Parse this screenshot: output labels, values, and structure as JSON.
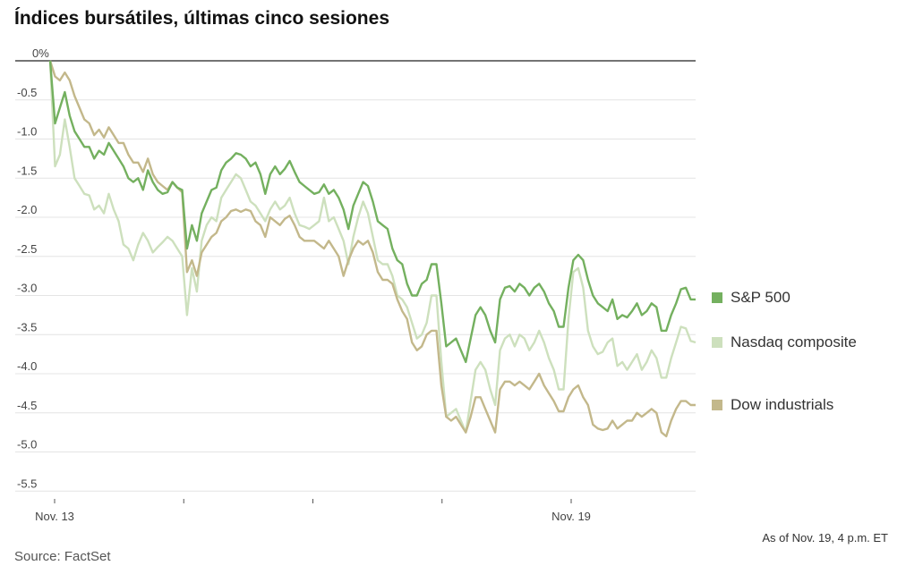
{
  "title": "Índices bursátiles, últimas cinco sesiones",
  "note": "As of Nov. 19, 4 p.m. ET",
  "source": "Source: FactSet",
  "colors": {
    "sp500": "#74b05f",
    "nasdaq": "#cde0bd",
    "dow": "#c3b88b",
    "grid": "#e4e4e4",
    "zero_line": "#222222"
  },
  "chart_data": {
    "type": "line",
    "title": "Índices bursátiles, últimas cinco sesiones",
    "xlabel": "",
    "ylabel": "",
    "ylim": [
      -5.6,
      0
    ],
    "y_ticks": [
      0,
      -0.5,
      -1.0,
      -1.5,
      -2.0,
      -2.5,
      -3.0,
      -3.5,
      -4.0,
      -4.5,
      -5.0,
      -5.5
    ],
    "y_tick_labels": [
      "0%",
      "-0.5",
      "-1.0",
      "-1.5",
      "-2.0",
      "-2.5",
      "-3.0",
      "-3.5",
      "-4.0",
      "-4.5",
      "-5.0",
      "-5.5"
    ],
    "x_sessions": 5,
    "x_tick_labels": [
      {
        "session": 0,
        "label": "Nov. 13"
      },
      {
        "session": 1,
        "label": ""
      },
      {
        "session": 2,
        "label": ""
      },
      {
        "session": 3,
        "label": ""
      },
      {
        "session": 4,
        "label": "Nov. 19"
      }
    ],
    "grid": true,
    "legend_position": "right",
    "series": [
      {
        "name": "S&P 500",
        "color": "#74b05f",
        "values": [
          0,
          -0.8,
          -0.6,
          -0.4,
          -0.7,
          -0.9,
          -1.0,
          -1.1,
          -1.1,
          -1.25,
          -1.15,
          -1.2,
          -1.05,
          -1.15,
          -1.25,
          -1.35,
          -1.5,
          -1.55,
          -1.5,
          -1.65,
          -1.4,
          -1.55,
          -1.65,
          -1.7,
          -1.68,
          -1.55,
          -1.62,
          -1.65,
          -2.4,
          -2.1,
          -2.3,
          -1.95,
          -1.8,
          -1.65,
          -1.62,
          -1.4,
          -1.3,
          -1.25,
          -1.18,
          -1.2,
          -1.25,
          -1.35,
          -1.3,
          -1.45,
          -1.7,
          -1.45,
          -1.35,
          -1.45,
          -1.38,
          -1.28,
          -1.42,
          -1.55,
          -1.6,
          -1.65,
          -1.7,
          -1.68,
          -1.58,
          -1.7,
          -1.65,
          -1.75,
          -1.9,
          -2.15,
          -1.85,
          -1.7,
          -1.55,
          -1.6,
          -1.8,
          -2.05,
          -2.1,
          -2.15,
          -2.4,
          -2.55,
          -2.6,
          -2.85,
          -3.0,
          -3.0,
          -2.85,
          -2.8,
          -2.6,
          -2.6,
          -3.1,
          -3.65,
          -3.6,
          -3.55,
          -3.7,
          -3.85,
          -3.55,
          -3.25,
          -3.15,
          -3.25,
          -3.45,
          -3.6,
          -3.05,
          -2.9,
          -2.88,
          -2.95,
          -2.85,
          -2.9,
          -3.0,
          -2.9,
          -2.85,
          -2.95,
          -3.1,
          -3.2,
          -3.4,
          -3.4,
          -2.9,
          -2.55,
          -2.48,
          -2.55,
          -2.8,
          -3.0,
          -3.1,
          -3.15,
          -3.2,
          -3.05,
          -3.3,
          -3.25,
          -3.28,
          -3.2,
          -3.1,
          -3.25,
          -3.2,
          -3.1,
          -3.15,
          -3.45,
          -3.45,
          -3.25,
          -3.1,
          -2.92,
          -2.9,
          -3.05,
          -3.05
        ]
      },
      {
        "name": "Nasdaq composite",
        "color": "#cde0bd",
        "values": [
          0,
          -1.35,
          -1.2,
          -0.75,
          -1.1,
          -1.5,
          -1.6,
          -1.7,
          -1.72,
          -1.9,
          -1.85,
          -1.95,
          -1.7,
          -1.9,
          -2.05,
          -2.35,
          -2.4,
          -2.55,
          -2.35,
          -2.2,
          -2.3,
          -2.45,
          -2.38,
          -2.32,
          -2.25,
          -2.3,
          -2.4,
          -2.5,
          -3.25,
          -2.65,
          -2.95,
          -2.3,
          -2.1,
          -2.0,
          -2.05,
          -1.75,
          -1.65,
          -1.55,
          -1.45,
          -1.5,
          -1.65,
          -1.8,
          -1.85,
          -1.95,
          -2.05,
          -1.9,
          -1.8,
          -1.9,
          -1.85,
          -1.75,
          -1.95,
          -2.1,
          -2.12,
          -2.15,
          -2.1,
          -2.05,
          -1.75,
          -2.05,
          -2.0,
          -2.15,
          -2.3,
          -2.6,
          -2.25,
          -2.0,
          -1.8,
          -1.95,
          -2.25,
          -2.55,
          -2.6,
          -2.6,
          -2.75,
          -3.0,
          -3.05,
          -3.15,
          -3.35,
          -3.55,
          -3.5,
          -3.35,
          -3.0,
          -3.0,
          -3.85,
          -4.55,
          -4.5,
          -4.45,
          -4.6,
          -4.75,
          -4.35,
          -3.95,
          -3.85,
          -3.95,
          -4.2,
          -4.4,
          -3.7,
          -3.55,
          -3.5,
          -3.65,
          -3.5,
          -3.55,
          -3.7,
          -3.6,
          -3.45,
          -3.6,
          -3.8,
          -3.95,
          -4.2,
          -4.2,
          -3.3,
          -2.7,
          -2.65,
          -2.9,
          -3.45,
          -3.65,
          -3.75,
          -3.72,
          -3.6,
          -3.55,
          -3.9,
          -3.85,
          -3.95,
          -3.85,
          -3.75,
          -3.95,
          -3.85,
          -3.7,
          -3.8,
          -4.05,
          -4.05,
          -3.8,
          -3.6,
          -3.4,
          -3.42,
          -3.58,
          -3.6
        ]
      },
      {
        "name": "Dow industrials",
        "color": "#c3b88b",
        "values": [
          0,
          -0.2,
          -0.25,
          -0.15,
          -0.25,
          -0.45,
          -0.6,
          -0.75,
          -0.8,
          -0.95,
          -0.88,
          -0.98,
          -0.85,
          -0.95,
          -1.05,
          -1.05,
          -1.2,
          -1.3,
          -1.3,
          -1.42,
          -1.25,
          -1.45,
          -1.55,
          -1.6,
          -1.65,
          -1.55,
          -1.62,
          -1.68,
          -2.7,
          -2.55,
          -2.75,
          -2.45,
          -2.35,
          -2.25,
          -2.2,
          -2.05,
          -2.0,
          -1.92,
          -1.9,
          -1.93,
          -1.9,
          -1.92,
          -2.05,
          -2.1,
          -2.25,
          -2.0,
          -2.05,
          -2.1,
          -2.02,
          -1.98,
          -2.1,
          -2.25,
          -2.3,
          -2.3,
          -2.3,
          -2.35,
          -2.4,
          -2.3,
          -2.4,
          -2.5,
          -2.75,
          -2.55,
          -2.4,
          -2.3,
          -2.35,
          -2.3,
          -2.45,
          -2.7,
          -2.8,
          -2.8,
          -2.85,
          -3.05,
          -3.2,
          -3.3,
          -3.6,
          -3.7,
          -3.65,
          -3.5,
          -3.45,
          -3.45,
          -4.15,
          -4.55,
          -4.6,
          -4.55,
          -4.65,
          -4.75,
          -4.55,
          -4.3,
          -4.3,
          -4.45,
          -4.6,
          -4.75,
          -4.2,
          -4.1,
          -4.1,
          -4.15,
          -4.1,
          -4.15,
          -4.2,
          -4.1,
          -4.0,
          -4.15,
          -4.25,
          -4.35,
          -4.48,
          -4.48,
          -4.3,
          -4.2,
          -4.15,
          -4.3,
          -4.4,
          -4.65,
          -4.7,
          -4.72,
          -4.7,
          -4.6,
          -4.7,
          -4.65,
          -4.6,
          -4.6,
          -4.5,
          -4.55,
          -4.5,
          -4.45,
          -4.5,
          -4.75,
          -4.8,
          -4.6,
          -4.45,
          -4.35,
          -4.35,
          -4.4,
          -4.4
        ]
      }
    ]
  }
}
